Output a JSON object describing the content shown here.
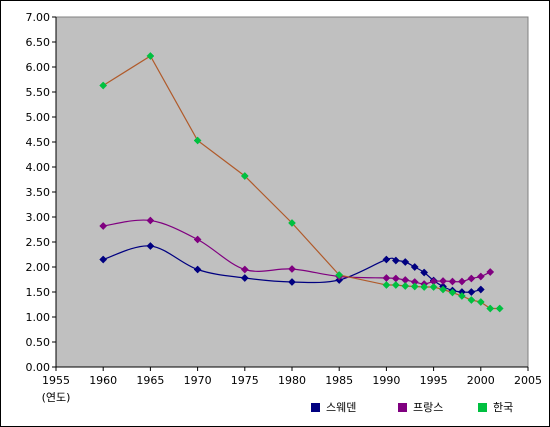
{
  "chart_data": {
    "type": "line",
    "title": "",
    "xlabel": "(연도)",
    "ylabel": "",
    "xlim": [
      1955,
      2005
    ],
    "ylim": [
      0,
      7
    ],
    "x_ticks": [
      "1955",
      "1960",
      "1965",
      "1970",
      "1975",
      "1980",
      "1985",
      "1990",
      "1995",
      "2000",
      "2005"
    ],
    "y_ticks": [
      "0.00",
      "0.50",
      "1.00",
      "1.50",
      "2.00",
      "2.50",
      "3.00",
      "3.50",
      "4.00",
      "4.50",
      "5.00",
      "5.50",
      "6.00",
      "6.50",
      "7.00"
    ],
    "grid": false,
    "legend_position": "bottom-right",
    "plot_background": "#c0c0c0",
    "series": [
      {
        "name": "스웨덴",
        "color": "#000080",
        "marker": "diamond",
        "curve": "smooth",
        "x": [
          1960,
          1965,
          1970,
          1975,
          1980,
          1985,
          1990,
          1991,
          1992,
          1993,
          1994,
          1995,
          1996,
          1997,
          1998,
          1999,
          2000
        ],
        "values": [
          2.15,
          2.42,
          1.95,
          1.78,
          1.7,
          1.74,
          2.15,
          2.13,
          2.1,
          2.0,
          1.89,
          1.73,
          1.61,
          1.53,
          1.5,
          1.5,
          1.55
        ]
      },
      {
        "name": "프랑스",
        "color": "#800080",
        "marker": "diamond",
        "curve": "smooth",
        "x": [
          1960,
          1965,
          1970,
          1975,
          1980,
          1985,
          1990,
          1991,
          1992,
          1993,
          1994,
          1995,
          1996,
          1997,
          1998,
          1999,
          2000,
          2001
        ],
        "values": [
          2.82,
          2.93,
          2.55,
          1.95,
          1.96,
          1.81,
          1.78,
          1.77,
          1.74,
          1.7,
          1.66,
          1.71,
          1.72,
          1.71,
          1.71,
          1.77,
          1.81,
          1.9
        ]
      },
      {
        "name": "한국",
        "color": "#00c040",
        "line_color": "#b05a2a",
        "marker": "diamond",
        "curve": "straight",
        "x": [
          1960,
          1965,
          1970,
          1975,
          1980,
          1985,
          1990,
          1991,
          1992,
          1993,
          1994,
          1995,
          1996,
          1997,
          1998,
          1999,
          2000,
          2001,
          2002
        ],
        "values": [
          5.63,
          6.22,
          4.53,
          3.82,
          2.88,
          1.84,
          1.64,
          1.64,
          1.62,
          1.61,
          1.6,
          1.6,
          1.55,
          1.49,
          1.42,
          1.34,
          1.3,
          1.17,
          1.17
        ]
      }
    ]
  }
}
